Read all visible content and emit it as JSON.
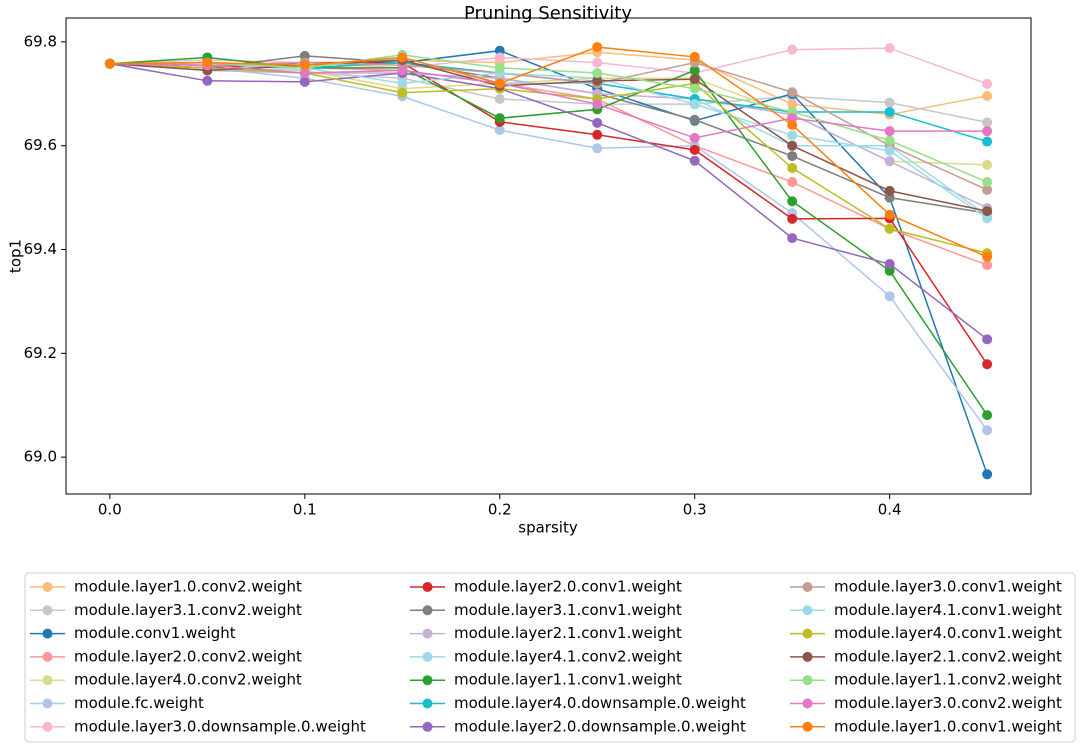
{
  "chart_data": {
    "type": "line",
    "title": "Pruning Sensitivity",
    "x_label": "sparsity",
    "y_label": "top1",
    "x": [
      0,
      0.05,
      0.1,
      0.15,
      0.2,
      0.25,
      0.3,
      0.35,
      0.4,
      0.45
    ],
    "xlim": [
      -0.0225,
      0.4725
    ],
    "xticks": [
      {
        "value": 0,
        "label": "0.0"
      },
      0.1,
      0.2,
      0.3,
      0.4
    ],
    "ylim": [
      68.929,
      69.846
    ],
    "yticks": [
      {
        "value": 69.0,
        "label": "69.0"
      },
      69.2,
      69.4,
      69.6,
      69.8
    ],
    "legend_position": "below",
    "legend_columns": 3,
    "series": [
      {
        "name": "module.layer1.0.conv2.weight",
        "color": "#ffbb78",
        "values": [
          69.758,
          69.76,
          69.755,
          69.765,
          69.76,
          69.78,
          69.765,
          69.68,
          69.66,
          69.696
        ]
      },
      {
        "name": "module.layer3.1.conv2.weight",
        "color": "#c7c7c7",
        "values": [
          69.758,
          69.75,
          69.74,
          69.73,
          69.69,
          69.68,
          69.68,
          69.695,
          69.683,
          69.645
        ]
      },
      {
        "name": "module.conv1.weight",
        "color": "#1f77b4",
        "values": [
          69.758,
          69.76,
          69.75,
          69.76,
          69.783,
          69.71,
          69.648,
          69.7,
          69.5,
          68.967
        ]
      },
      {
        "name": "module.layer2.0.conv2.weight",
        "color": "#ff9896",
        "values": [
          69.758,
          69.755,
          69.75,
          69.745,
          69.72,
          69.69,
          69.6,
          69.53,
          69.44,
          69.37
        ]
      },
      {
        "name": "module.layer4.0.conv2.weight",
        "color": "#dbdb8d",
        "values": [
          69.758,
          69.75,
          69.745,
          69.71,
          69.72,
          69.73,
          69.73,
          69.66,
          69.57,
          69.563
        ]
      },
      {
        "name": "module.fc.weight",
        "color": "#aec7e8",
        "values": [
          69.758,
          69.75,
          69.73,
          69.695,
          69.63,
          69.595,
          69.6,
          69.47,
          69.31,
          69.052
        ]
      },
      {
        "name": "module.layer3.0.downsample.0.weight",
        "color": "#f7b6d2",
        "values": [
          69.758,
          69.765,
          69.76,
          69.75,
          69.77,
          69.76,
          69.74,
          69.785,
          69.788,
          69.719
        ]
      },
      {
        "name": "module.layer2.0.conv1.weight",
        "color": "#d62728",
        "values": [
          69.758,
          69.75,
          69.76,
          69.76,
          69.646,
          69.621,
          69.592,
          69.459,
          69.46,
          69.179
        ]
      },
      {
        "name": "module.layer3.1.conv1.weight",
        "color": "#7f7f7f",
        "values": [
          69.758,
          69.75,
          69.773,
          69.76,
          69.73,
          69.7,
          69.65,
          69.58,
          69.5,
          69.47
        ]
      },
      {
        "name": "module.layer2.1.conv1.weight",
        "color": "#c5b0d5",
        "values": [
          69.758,
          69.745,
          69.74,
          69.74,
          69.73,
          69.7,
          69.69,
          69.66,
          69.57,
          69.48
        ]
      },
      {
        "name": "module.layer4.1.conv2.weight",
        "color": "#9edae5",
        "values": [
          69.758,
          69.76,
          69.745,
          69.77,
          69.72,
          69.72,
          69.69,
          69.6,
          69.6,
          69.465
        ]
      },
      {
        "name": "module.layer1.1.conv1.weight",
        "color": "#2ca02c",
        "values": [
          69.758,
          69.77,
          69.75,
          69.75,
          69.653,
          69.67,
          69.745,
          69.493,
          69.359,
          69.081
        ]
      },
      {
        "name": "module.layer4.0.downsample.0.weight",
        "color": "#17becf",
        "values": [
          69.758,
          69.76,
          69.75,
          69.76,
          69.74,
          69.72,
          69.69,
          69.665,
          69.665,
          69.608
        ]
      },
      {
        "name": "module.layer2.0.downsample.0.weight",
        "color": "#9467bd",
        "values": [
          69.758,
          69.725,
          69.723,
          69.74,
          69.71,
          69.644,
          69.571,
          69.422,
          69.372,
          69.227
        ]
      },
      {
        "name": "module.layer3.0.conv1.weight",
        "color": "#c49c94",
        "values": [
          69.758,
          69.755,
          69.76,
          69.755,
          69.74,
          69.72,
          69.76,
          69.703,
          69.6,
          69.515
        ]
      },
      {
        "name": "module.layer4.1.conv1.weight",
        "color": "#9edae5",
        "values": [
          69.758,
          69.76,
          69.75,
          69.72,
          69.74,
          69.73,
          69.68,
          69.62,
          69.59,
          69.46
        ]
      },
      {
        "name": "module.layer4.0.conv1.weight",
        "color": "#bcbd22",
        "values": [
          69.758,
          69.75,
          69.74,
          69.702,
          69.71,
          69.69,
          69.72,
          69.557,
          69.44,
          69.393
        ]
      },
      {
        "name": "module.layer2.1.conv2.weight",
        "color": "#8c564b",
        "values": [
          69.758,
          69.745,
          69.755,
          69.765,
          69.715,
          69.725,
          69.728,
          69.6,
          69.513,
          69.474
        ]
      },
      {
        "name": "module.layer1.1.conv2.weight",
        "color": "#98df8a",
        "values": [
          69.758,
          69.76,
          69.75,
          69.775,
          69.75,
          69.74,
          69.71,
          69.665,
          69.61,
          69.53
        ]
      },
      {
        "name": "module.layer3.0.conv2.weight",
        "color": "#e377c2",
        "values": [
          69.758,
          69.755,
          69.74,
          69.745,
          69.72,
          69.68,
          69.615,
          69.653,
          69.628,
          69.628
        ]
      },
      {
        "name": "module.layer1.0.conv1.weight",
        "color": "#ff7f0e",
        "values": [
          69.758,
          69.76,
          69.755,
          69.77,
          69.72,
          69.79,
          69.771,
          69.64,
          69.467,
          69.386
        ]
      }
    ]
  }
}
